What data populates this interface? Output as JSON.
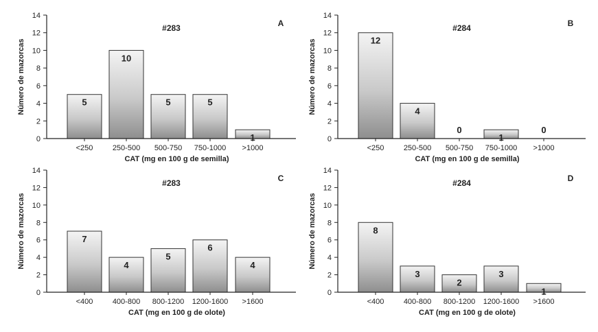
{
  "chart_data": [
    {
      "type": "bar",
      "panel": "A",
      "title": "#283",
      "categories": [
        "<250",
        "250-500",
        "500-750",
        "750-1000",
        ">1000"
      ],
      "values": [
        5,
        10,
        5,
        5,
        1
      ],
      "xlabel": "CAT (mg en 100 g de semilla)",
      "ylabel": "Número de mazorcas",
      "ylim": [
        0,
        14
      ],
      "yticks": [
        0,
        2,
        4,
        6,
        8,
        10,
        12,
        14
      ],
      "grid": false
    },
    {
      "type": "bar",
      "panel": "B",
      "title": "#284",
      "categories": [
        "<250",
        "250-500",
        "500-750",
        "750-1000",
        ">1000"
      ],
      "values": [
        12,
        4,
        0,
        1,
        0
      ],
      "xlabel": "CAT (mg en 100 g de semilla)",
      "ylabel": "Número de mazorcas",
      "ylim": [
        0,
        14
      ],
      "yticks": [
        0,
        2,
        4,
        6,
        8,
        10,
        12,
        14
      ],
      "grid": false
    },
    {
      "type": "bar",
      "panel": "C",
      "title": "#283",
      "categories": [
        "<400",
        "400-800",
        "800-1200",
        "1200-1600",
        ">1600"
      ],
      "values": [
        7,
        4,
        5,
        6,
        4
      ],
      "xlabel": "CAT (mg en 100 g de olote)",
      "ylabel": "Número de mazorcas",
      "ylim": [
        0,
        14
      ],
      "yticks": [
        0,
        2,
        4,
        6,
        8,
        10,
        12,
        14
      ],
      "grid": false
    },
    {
      "type": "bar",
      "panel": "D",
      "title": "#284",
      "categories": [
        "<400",
        "400-800",
        "800-1200",
        "1200-1600",
        ">1600"
      ],
      "values": [
        8,
        3,
        2,
        3,
        1
      ],
      "xlabel": "CAT (mg en 100 g de olote)",
      "ylabel": "Número de mazorcas",
      "ylim": [
        0,
        14
      ],
      "yticks": [
        0,
        2,
        4,
        6,
        8,
        10,
        12,
        14
      ],
      "grid": false
    }
  ]
}
